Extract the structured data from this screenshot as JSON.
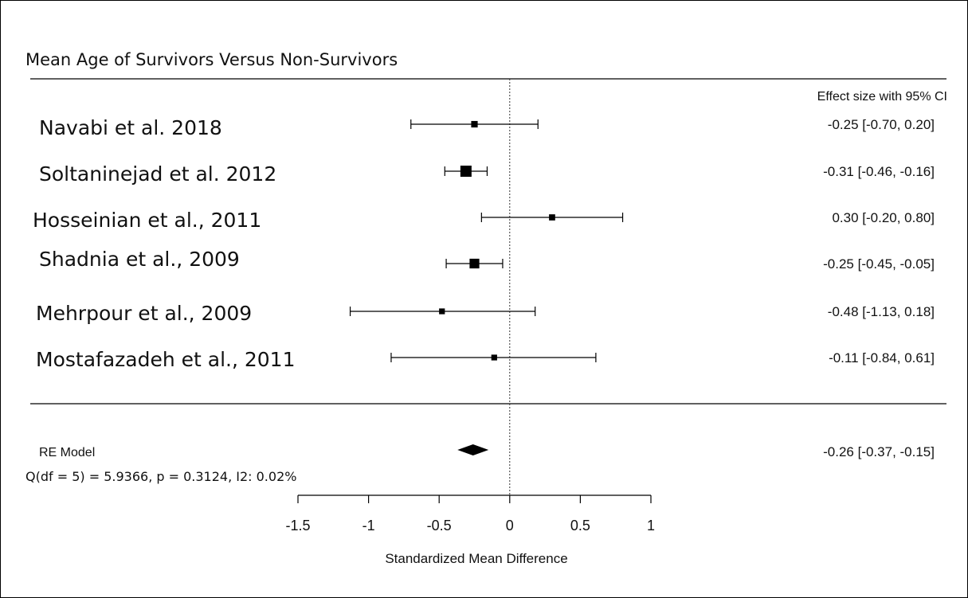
{
  "chart_data": {
    "type": "forest",
    "title": "Mean Age of Survivors Versus Non-Survivors",
    "column_header": "Effect size with 95% CI",
    "xlabel": "Standardized Mean Difference",
    "xlim": [
      -1.5,
      1
    ],
    "xticks": [
      -1.5,
      -1,
      -0.5,
      0,
      0.5,
      1
    ],
    "xtick_labels": [
      "-1.5",
      "-1",
      "-0.5",
      "0",
      "0.5",
      "1"
    ],
    "reference_line": 0,
    "studies": [
      {
        "name": "Navabi et al. 2018",
        "effect": -0.25,
        "lower": -0.7,
        "upper": 0.2,
        "ci_label": "-0.25 [-0.70,  0.20]",
        "weight": 0.35
      },
      {
        "name": "Soltaninejad et al. 2012",
        "effect": -0.31,
        "lower": -0.46,
        "upper": -0.16,
        "ci_label": "-0.31 [-0.46, -0.16]",
        "weight": 1.0
      },
      {
        "name": "Hosseinian et al., 2011",
        "effect": 0.3,
        "lower": -0.2,
        "upper": 0.8,
        "ci_label": "0.30 [-0.20,  0.80]",
        "weight": 0.3
      },
      {
        "name": "Shadnia et al., 2009",
        "effect": -0.25,
        "lower": -0.45,
        "upper": -0.05,
        "ci_label": "-0.25 [-0.45, -0.05]",
        "weight": 0.8
      },
      {
        "name": "Mehrpour et al., 2009",
        "effect": -0.48,
        "lower": -1.13,
        "upper": 0.18,
        "ci_label": "-0.48 [-1.13,  0.18]",
        "weight": 0.25
      },
      {
        "name": "Mostafazadeh et al., 2011",
        "effect": -0.11,
        "lower": -0.84,
        "upper": 0.61,
        "ci_label": "-0.11 [-0.84,  0.61]",
        "weight": 0.25
      }
    ],
    "summary": {
      "name": "RE Model",
      "effect": -0.26,
      "lower": -0.37,
      "upper": -0.15,
      "ci_label": "-0.26 [-0.37, -0.15]"
    },
    "heterogeneity": "Q(df = 5) = 5.9366, p = 0.3124, I2: 0.02%"
  }
}
